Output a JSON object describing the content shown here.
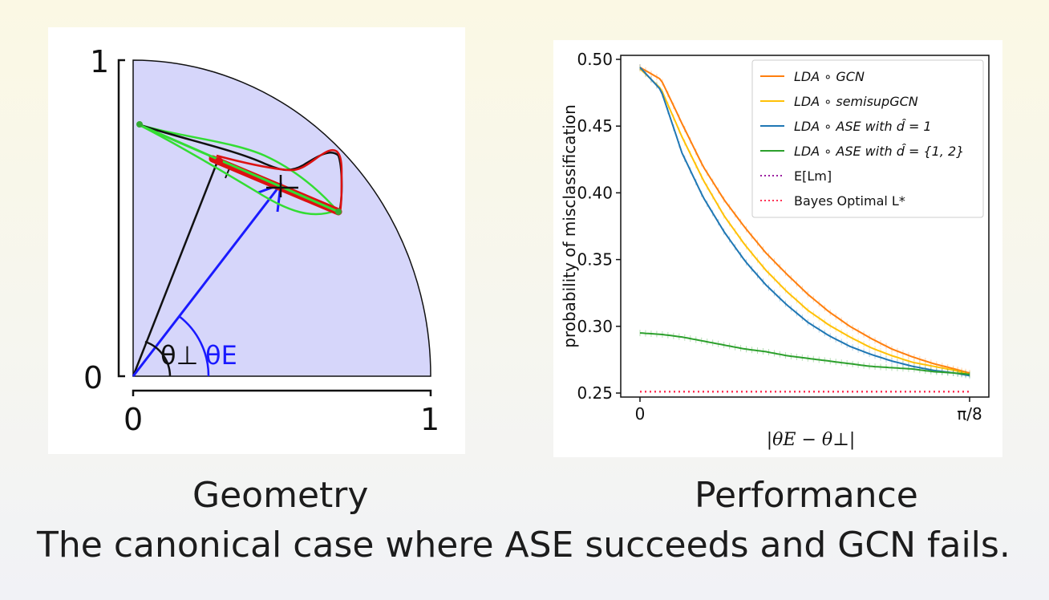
{
  "geometry_panel": {
    "y_tick_top": "1",
    "y_tick_bottom": "0",
    "x_tick_left": "0",
    "x_tick_right": "1",
    "theta_perp_label": "θ⊥",
    "theta_e_label": "θE",
    "colors": {
      "quarter_disk": "#d6d6fa",
      "blue_vector": "#1a1aff",
      "green_curve": "#33dd33",
      "red_curve": "#dd1111",
      "black_curve": "#111111"
    }
  },
  "chart_data": {
    "type": "line",
    "xlabel": "|θE − θ⊥|",
    "ylabel": "probability of misclassification",
    "x_tick_labels": [
      "0",
      "π/8"
    ],
    "y_tick_labels": [
      "0.25",
      "0.30",
      "0.35",
      "0.40",
      "0.45",
      "0.50"
    ],
    "x": [
      0,
      0.025,
      0.05,
      0.075,
      0.1,
      0.125,
      0.15,
      0.175,
      0.2,
      0.225,
      0.25,
      0.275,
      0.3,
      0.325,
      0.35,
      0.375,
      0.3927
    ],
    "xlim": [
      0,
      0.3927
    ],
    "ylim": [
      0.247,
      0.503
    ],
    "grid": false,
    "legend_position": "top-right",
    "series": [
      {
        "name": "LDA ∘ GCN",
        "color": "#ff7f0e",
        "style": "solid",
        "values": [
          0.494,
          0.485,
          0.452,
          0.42,
          0.395,
          0.374,
          0.355,
          0.339,
          0.324,
          0.311,
          0.3,
          0.291,
          0.283,
          0.277,
          0.272,
          0.268,
          0.265
        ]
      },
      {
        "name": "LDA ∘ semisupGCN",
        "color": "#ffc107",
        "style": "solid",
        "values": [
          0.493,
          0.478,
          0.442,
          0.41,
          0.383,
          0.361,
          0.342,
          0.326,
          0.312,
          0.301,
          0.292,
          0.284,
          0.278,
          0.273,
          0.27,
          0.267,
          0.264
        ]
      },
      {
        "name": "LDA ∘ ASE with d̂ = 1",
        "color": "#1f77b4",
        "style": "solid",
        "values": [
          0.494,
          0.477,
          0.43,
          0.397,
          0.371,
          0.349,
          0.331,
          0.316,
          0.303,
          0.293,
          0.285,
          0.279,
          0.274,
          0.27,
          0.267,
          0.265,
          0.263
        ]
      },
      {
        "name": "LDA ∘ ASE with d̂ = {1, 2}",
        "color": "#2ca02c",
        "style": "solid",
        "values": [
          0.295,
          0.294,
          0.292,
          0.289,
          0.286,
          0.283,
          0.281,
          0.278,
          0.276,
          0.274,
          0.272,
          0.27,
          0.269,
          0.268,
          0.266,
          0.265,
          0.264
        ]
      },
      {
        "name": "E[Lm]",
        "color": "#9b1fa0",
        "style": "dotted",
        "values": [
          0.251,
          0.251,
          0.251,
          0.251,
          0.251,
          0.251,
          0.251,
          0.251,
          0.251,
          0.251,
          0.251,
          0.251,
          0.251,
          0.251,
          0.251,
          0.251,
          0.251
        ]
      },
      {
        "name": "Bayes Optimal L*",
        "color": "#ff3355",
        "style": "dotted",
        "values": [
          0.251,
          0.251,
          0.251,
          0.251,
          0.251,
          0.251,
          0.251,
          0.251,
          0.251,
          0.251,
          0.251,
          0.251,
          0.251,
          0.251,
          0.251,
          0.251,
          0.251
        ]
      }
    ]
  },
  "captions": {
    "left": "Geometry",
    "right": "Performance",
    "main": "The canonical case where ASE succeeds and GCN fails."
  }
}
